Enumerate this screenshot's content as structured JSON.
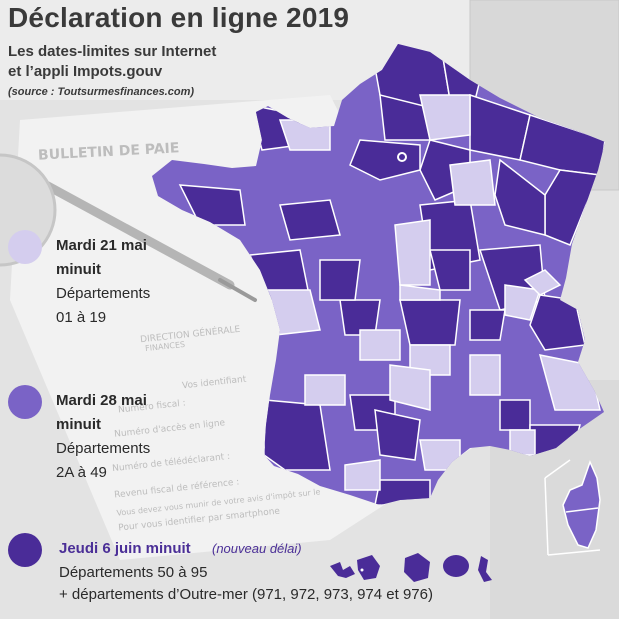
{
  "title": "Déclaration en ligne 2019",
  "subtitle_line1": "Les dates-limites sur Internet",
  "subtitle_line2": "et l’appli Impots.gouv",
  "source": "(source : Toutsurmesfinances.com)",
  "colors": {
    "zone1": "#d4cdee",
    "zone2": "#7a63c6",
    "zone3": "#4a2c98",
    "border": "#ffffff",
    "note": "#4b2f97"
  },
  "legend": [
    {
      "zone": 1,
      "date": "Mardi 21 mai",
      "time": "minuit",
      "dept_label": "Départements",
      "dept_range": "01 à 19"
    },
    {
      "zone": 2,
      "date": "Mardi 28 mai",
      "time": "minuit",
      "dept_label": "Départements",
      "dept_range": "2A à 49"
    },
    {
      "zone": 3,
      "date": "Jeudi 6 juin minuit",
      "note": "(nouveau délai)",
      "line2": "Départements 50 à 95",
      "line3": "+ départements d’Outre-mer (971, 972, 973, 974 et 976)"
    }
  ],
  "background_text": {
    "bulletin": "BULLETIN DE PAIE",
    "direction": "DIRECTION GÉNÉRALE",
    "finances": "FINANCES",
    "identifiant": "Vos identifiant",
    "numero_fiscal": "Numéro fiscal :",
    "numero_acces": "Numéro d'accès en ligne",
    "numero_teledeclarant": "Numéro de télédéclarant :",
    "revenu_fiscal": "Revenu fiscal de référence :",
    "avis_impot": "Vous devez vous munir de votre avis d'impôt sur le",
    "identifier": "Pour vous identifier par smartphone"
  }
}
